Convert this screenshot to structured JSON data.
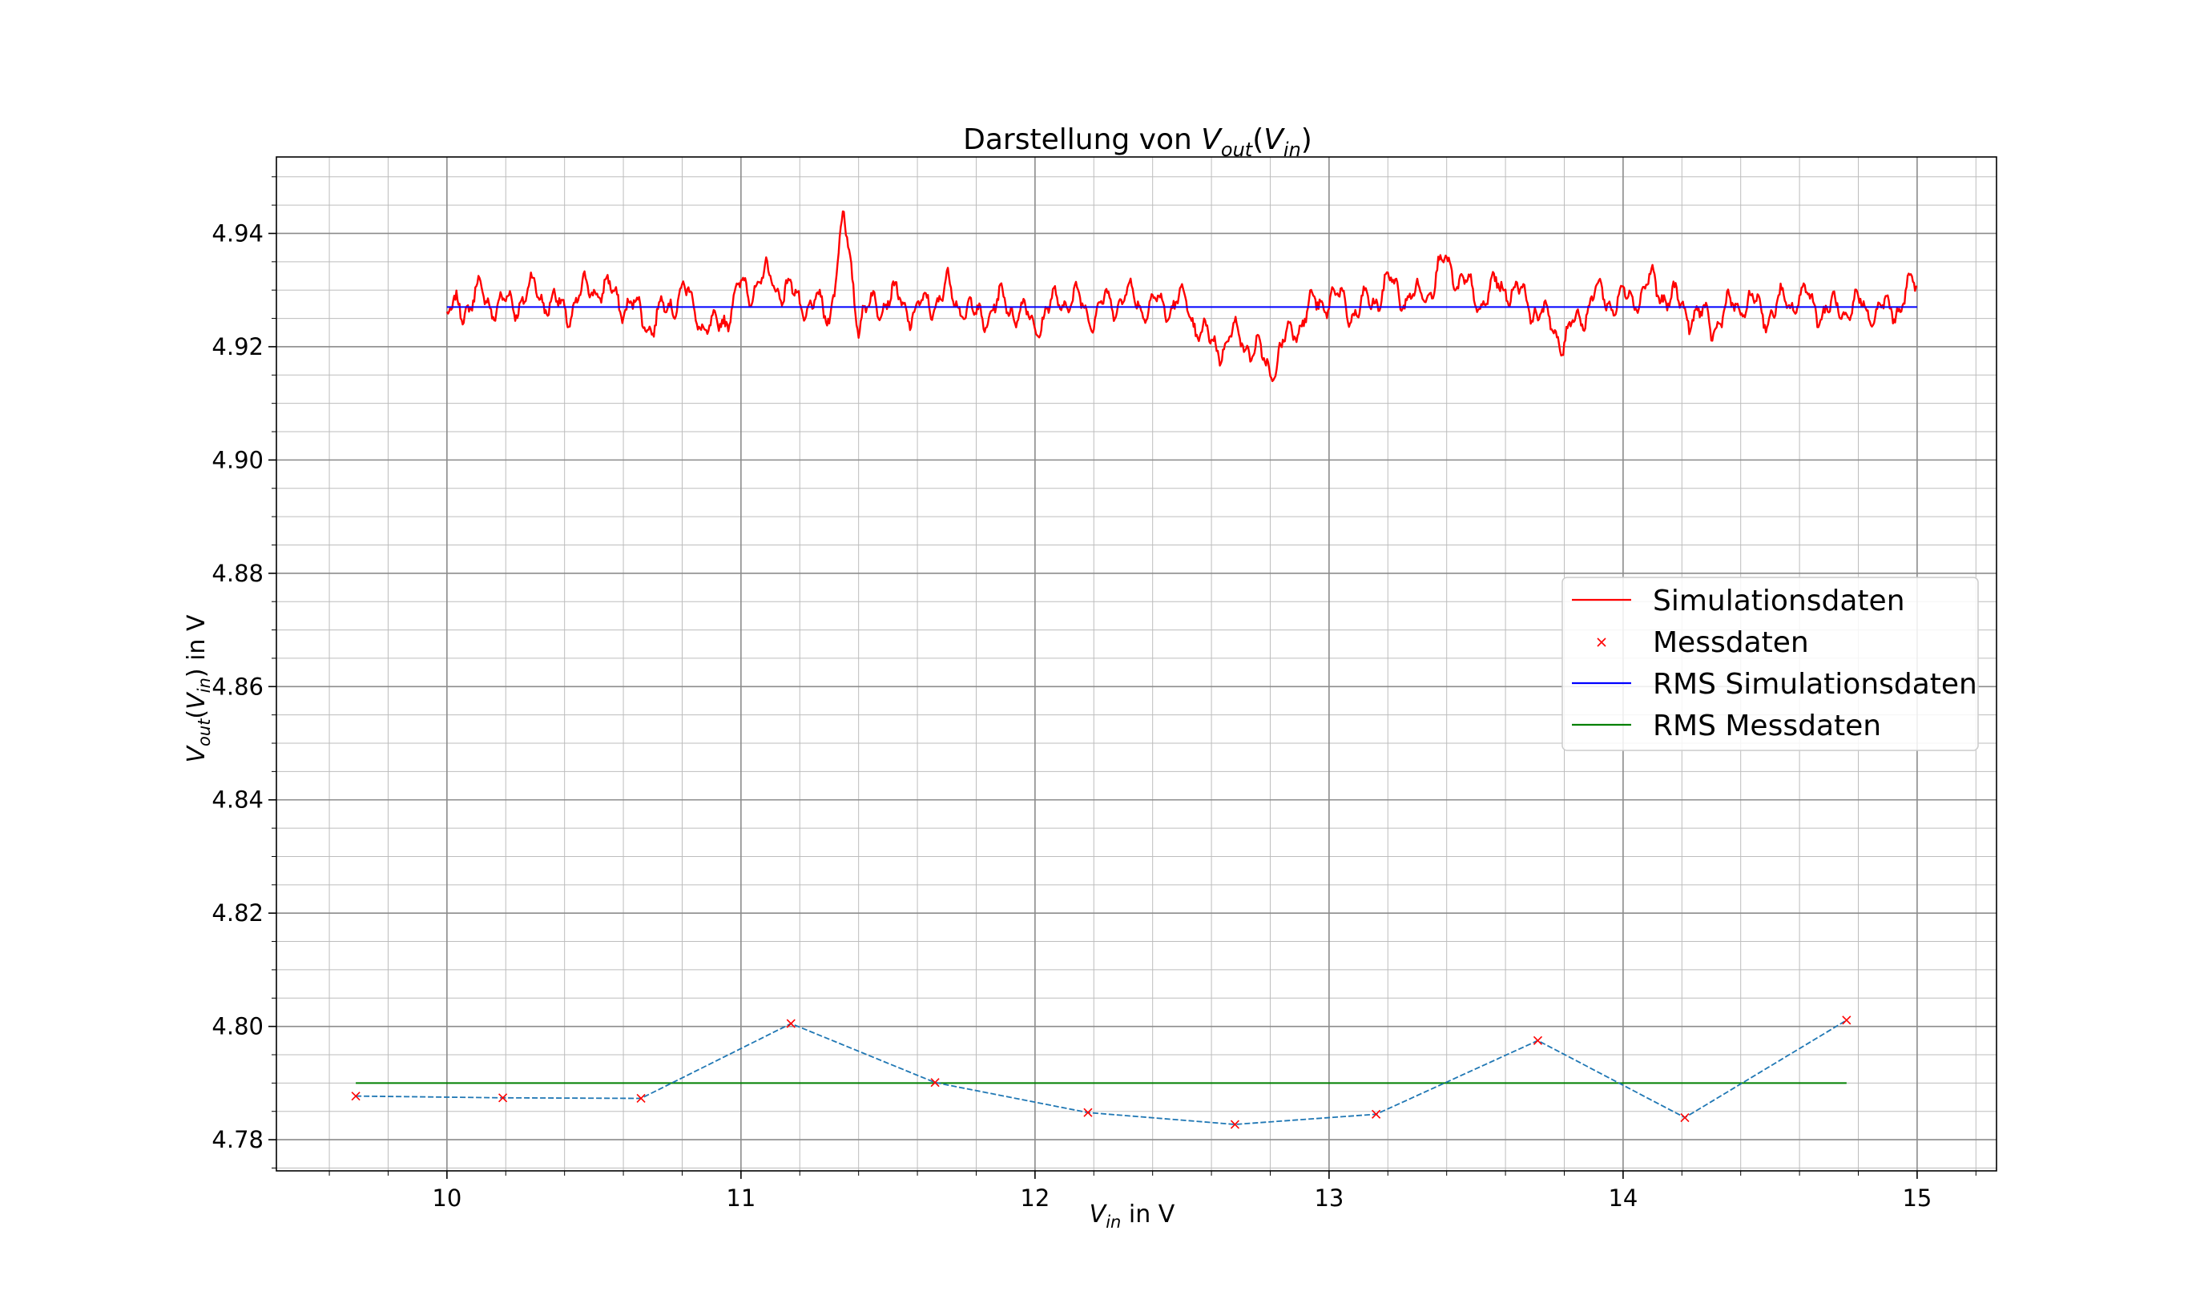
{
  "chart_data": {
    "type": "line",
    "title": {
      "pre": "Darstellung von ",
      "v": "V",
      "sub1": "out",
      "mid": "(",
      "v2": "V",
      "sub2": "in",
      "post": ")"
    },
    "xlabel": {
      "v": "V",
      "sub": "in",
      "post": " in V"
    },
    "ylabel": {
      "v": "V",
      "sub1": "out",
      "mid": "(",
      "v2": "V",
      "sub2": "in",
      "post": ") in V"
    },
    "xlim": [
      9.42,
      15.27
    ],
    "ylim": [
      4.7745,
      4.9535
    ],
    "x_ticks": [
      10,
      11,
      12,
      13,
      14,
      15
    ],
    "x_tick_labels": [
      "10",
      "11",
      "12",
      "13",
      "14",
      "15"
    ],
    "y_ticks": [
      4.78,
      4.8,
      4.82,
      4.84,
      4.86,
      4.88,
      4.9,
      4.92,
      4.94
    ],
    "y_tick_labels": [
      "4.78",
      "4.80",
      "4.82",
      "4.84",
      "4.86",
      "4.88",
      "4.90",
      "4.92",
      "4.94"
    ],
    "grid": {
      "major": true,
      "minor": true
    },
    "legend_position": "center-right",
    "series": [
      {
        "name": "Simulationsdaten",
        "kind": "line",
        "color": "#ff0000",
        "x": [
          10.0,
          10.1,
          10.2,
          10.3,
          10.4,
          10.5,
          10.6,
          10.7,
          10.8,
          10.9,
          11.0,
          11.1,
          11.2,
          11.3,
          11.35,
          11.4,
          11.5,
          11.6,
          11.7,
          11.8,
          11.9,
          12.0,
          12.1,
          12.2,
          12.3,
          12.4,
          12.5,
          12.6,
          12.7,
          12.8,
          12.9,
          13.0,
          13.1,
          13.2,
          13.3,
          13.4,
          13.5,
          13.6,
          13.7,
          13.8,
          13.9,
          14.0,
          14.1,
          14.2,
          14.3,
          14.4,
          14.5,
          14.6,
          14.7,
          14.8,
          14.9,
          15.0
        ],
        "y": [
          4.925,
          4.929,
          4.927,
          4.93,
          4.926,
          4.931,
          4.928,
          4.924,
          4.93,
          4.922,
          4.93,
          4.932,
          4.928,
          4.926,
          4.942,
          4.925,
          4.929,
          4.926,
          4.93,
          4.925,
          4.928,
          4.924,
          4.929,
          4.926,
          4.929,
          4.927,
          4.928,
          4.92,
          4.922,
          4.916,
          4.925,
          4.929,
          4.926,
          4.931,
          4.928,
          4.935,
          4.928,
          4.931,
          4.927,
          4.921,
          4.929,
          4.928,
          4.931,
          4.927,
          4.924,
          4.928,
          4.926,
          4.929,
          4.926,
          4.927,
          4.926,
          4.931
        ]
      },
      {
        "name": "Messdaten",
        "kind": "markers",
        "color": "#ff0000",
        "x": [
          9.69,
          10.19,
          10.66,
          11.17,
          11.66,
          12.18,
          12.68,
          13.16,
          13.71,
          14.21,
          14.76
        ],
        "y": [
          4.7877,
          4.7874,
          4.7873,
          4.8005,
          4.7901,
          4.7848,
          4.7827,
          4.7845,
          4.7975,
          4.7839,
          4.8011
        ]
      },
      {
        "name": "RMS Simulationsdaten",
        "kind": "hline",
        "color": "#0000ff",
        "x": [
          10.0,
          15.0
        ],
        "y": [
          4.927,
          4.927
        ]
      },
      {
        "name": "RMS Messdaten",
        "kind": "hline",
        "color": "#008000",
        "x": [
          9.69,
          14.76
        ],
        "y": [
          4.79,
          4.79
        ]
      }
    ],
    "connector_color": "#1f77b4"
  }
}
